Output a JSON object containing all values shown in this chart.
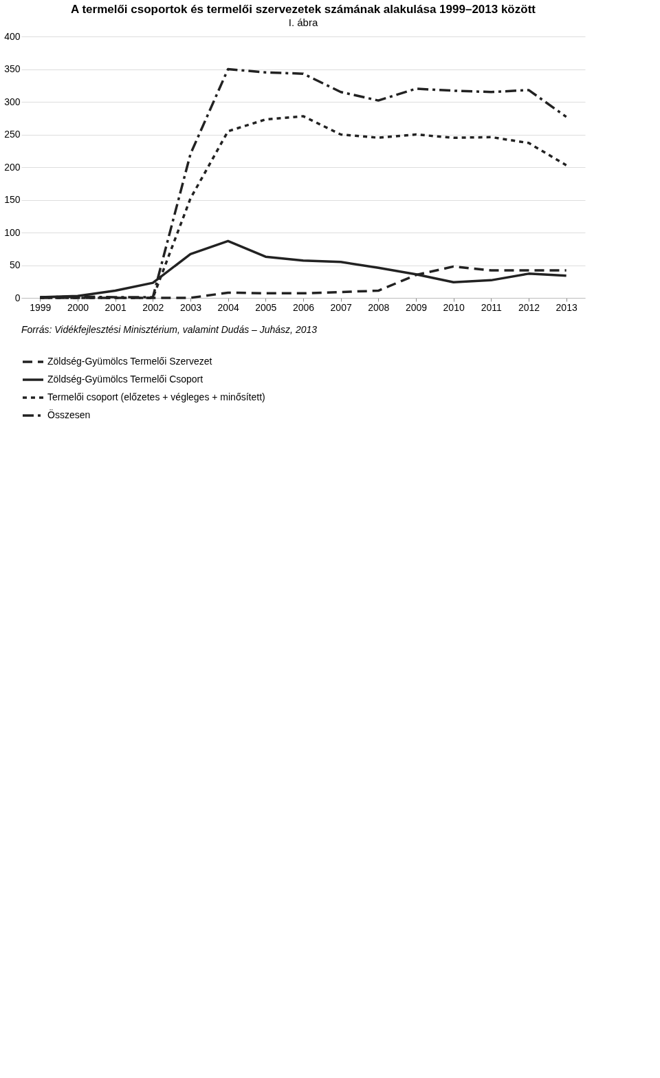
{
  "chart_data": {
    "type": "line",
    "title": "A termelői csoportok és termelői szervezetek számának alakulása 1999–2013 között",
    "subtitle": "I. ábra",
    "categories": [
      "1999",
      "2000",
      "2001",
      "2002",
      "2003",
      "2004",
      "2005",
      "2006",
      "2007",
      "2008",
      "2009",
      "2010",
      "2011",
      "2012",
      "2013"
    ],
    "series": [
      {
        "name": "Zöldség-Gyümölcs Termelői Szervezet",
        "color": "#222222",
        "line_style": "dashed",
        "values": [
          0,
          0,
          0,
          0,
          0,
          8,
          7,
          7,
          9,
          11,
          35,
          48,
          42,
          42,
          42
        ]
      },
      {
        "name": "Zöldség-Gyümölcs Termelői Csoport",
        "color": "#222222",
        "line_style": "solid",
        "values": [
          1,
          3,
          11,
          23,
          67,
          87,
          63,
          57,
          55,
          46,
          36,
          24,
          27,
          37,
          34
        ]
      },
      {
        "name": "Termelői csoport (előzetes + végleges + minősített)",
        "color": "#222222",
        "line_style": "dotted",
        "values": [
          0,
          0,
          0,
          0,
          152,
          255,
          273,
          278,
          250,
          245,
          250,
          245,
          246,
          237,
          203
        ]
      },
      {
        "name": "Összesen",
        "color": "#222222",
        "line_style": "dashdot",
        "values": [
          1,
          2,
          1,
          1,
          220,
          350,
          345,
          343,
          315,
          302,
          320,
          317,
          315,
          318,
          277
        ]
      }
    ],
    "ylim": [
      0,
      400
    ],
    "yticks": [
      0,
      50,
      100,
      150,
      200,
      250,
      300,
      350,
      400
    ],
    "grid": "y",
    "legend": "bottom",
    "marker": "none",
    "annotations": [
      "Forrás: Vidékfejlesztési Minisztérium, valamint Dudás – Juhász, 2013"
    ]
  }
}
